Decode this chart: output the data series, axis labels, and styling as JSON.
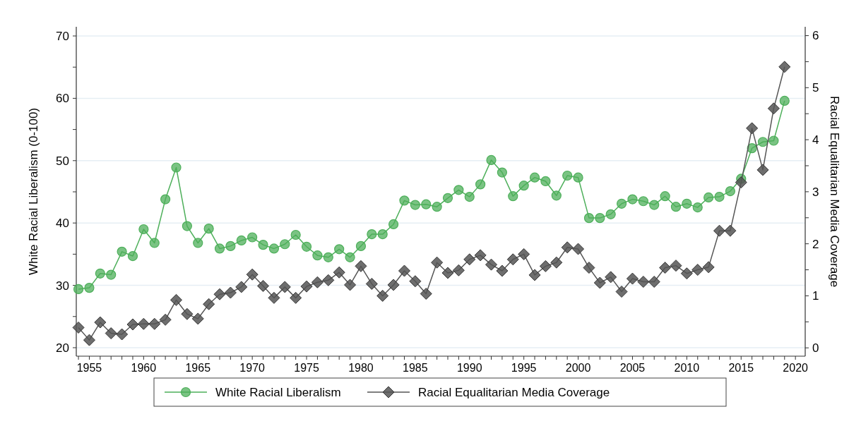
{
  "chart_data": {
    "type": "line",
    "ylabel": "White Racial Liberalism (0-100)",
    "y2label": "Racial Equalitarian Media Coverage",
    "x": [
      1954,
      1955,
      1956,
      1957,
      1958,
      1959,
      1960,
      1961,
      1962,
      1963,
      1964,
      1965,
      1966,
      1967,
      1968,
      1969,
      1970,
      1971,
      1972,
      1973,
      1974,
      1975,
      1976,
      1977,
      1978,
      1979,
      1980,
      1981,
      1982,
      1983,
      1984,
      1985,
      1986,
      1987,
      1988,
      1989,
      1990,
      1991,
      1992,
      1993,
      1994,
      1995,
      1996,
      1997,
      1998,
      1999,
      2000,
      2001,
      2002,
      2003,
      2004,
      2005,
      2006,
      2007,
      2008,
      2009,
      2010,
      2011,
      2012,
      2013,
      2014,
      2015,
      2016,
      2017,
      2018,
      2019
    ],
    "xlim": [
      1953.8,
      2020.9
    ],
    "xticks": [
      {
        "value": 1954,
        "label": null
      },
      1955,
      {
        "value": 1956,
        "label": null
      },
      {
        "value": 1957,
        "label": null
      },
      {
        "value": 1958,
        "label": null
      },
      {
        "value": 1959,
        "label": null
      },
      1960,
      {
        "value": 1961,
        "label": null
      },
      {
        "value": 1962,
        "label": null
      },
      {
        "value": 1963,
        "label": null
      },
      {
        "value": 1964,
        "label": null
      },
      1965,
      {
        "value": 1966,
        "label": null
      },
      {
        "value": 1967,
        "label": null
      },
      {
        "value": 1968,
        "label": null
      },
      {
        "value": 1969,
        "label": null
      },
      1970,
      {
        "value": 1971,
        "label": null
      },
      {
        "value": 1972,
        "label": null
      },
      {
        "value": 1973,
        "label": null
      },
      {
        "value": 1974,
        "label": null
      },
      1975,
      {
        "value": 1976,
        "label": null
      },
      {
        "value": 1977,
        "label": null
      },
      {
        "value": 1978,
        "label": null
      },
      {
        "value": 1979,
        "label": null
      },
      1980,
      {
        "value": 1981,
        "label": null
      },
      {
        "value": 1982,
        "label": null
      },
      {
        "value": 1983,
        "label": null
      },
      {
        "value": 1984,
        "label": null
      },
      1985,
      {
        "value": 1986,
        "label": null
      },
      {
        "value": 1987,
        "label": null
      },
      {
        "value": 1988,
        "label": null
      },
      {
        "value": 1989,
        "label": null
      },
      1990,
      {
        "value": 1991,
        "label": null
      },
      {
        "value": 1992,
        "label": null
      },
      {
        "value": 1993,
        "label": null
      },
      {
        "value": 1994,
        "label": null
      },
      1995,
      {
        "value": 1996,
        "label": null
      },
      {
        "value": 1997,
        "label": null
      },
      {
        "value": 1998,
        "label": null
      },
      {
        "value": 1999,
        "label": null
      },
      2000,
      {
        "value": 2001,
        "label": null
      },
      {
        "value": 2002,
        "label": null
      },
      {
        "value": 2003,
        "label": null
      },
      {
        "value": 2004,
        "label": null
      },
      2005,
      {
        "value": 2006,
        "label": null
      },
      {
        "value": 2007,
        "label": null
      },
      {
        "value": 2008,
        "label": null
      },
      {
        "value": 2009,
        "label": null
      },
      2010,
      {
        "value": 2011,
        "label": null
      },
      {
        "value": 2012,
        "label": null
      },
      {
        "value": 2013,
        "label": null
      },
      {
        "value": 2014,
        "label": null
      },
      2015,
      {
        "value": 2016,
        "label": null
      },
      {
        "value": 2017,
        "label": null
      },
      {
        "value": 2018,
        "label": null
      },
      {
        "value": 2019,
        "label": null
      },
      2020
    ],
    "ylim": [
      18.64,
      71.47
    ],
    "yticks": [
      20,
      {
        "value": 25,
        "label": null
      },
      30,
      {
        "value": 35,
        "label": null
      },
      40,
      {
        "value": 45,
        "label": null
      },
      50,
      {
        "value": 55,
        "label": null
      },
      60,
      {
        "value": 65,
        "label": null
      },
      70
    ],
    "y2lim": [
      -0.16,
      6.17
    ],
    "y2ticks": [
      0,
      {
        "value": 0.5,
        "label": null
      },
      1,
      {
        "value": 1.5,
        "label": null
      },
      2,
      {
        "value": 2.5,
        "label": null
      },
      3,
      {
        "value": 3.5,
        "label": null
      },
      4,
      {
        "value": 4.5,
        "label": null
      },
      5,
      {
        "value": 5.5,
        "label": null
      },
      6
    ],
    "grid": "y",
    "legend": "bottom",
    "series": [
      {
        "name": "White Racial Liberalism",
        "color": "#4daf5a",
        "marker": "circle",
        "values": [
          29.4,
          29.6,
          31.9,
          31.7,
          35.4,
          34.7,
          39.0,
          36.8,
          43.8,
          48.9,
          39.5,
          36.8,
          39.1,
          35.9,
          36.3,
          37.2,
          37.7,
          36.5,
          35.9,
          36.6,
          38.1,
          36.2,
          34.8,
          34.5,
          35.8,
          34.5,
          36.3,
          38.2,
          38.2,
          39.8,
          43.6,
          42.9,
          43.0,
          42.6,
          44.0,
          45.3,
          44.2,
          46.2,
          50.1,
          48.1,
          44.3,
          46.0,
          47.3,
          46.7,
          44.4,
          47.6,
          47.3,
          40.8,
          40.8,
          41.4,
          43.1,
          43.8,
          43.5,
          42.9,
          44.3,
          42.6,
          43.1,
          42.5,
          44.1,
          44.2,
          45.1,
          47.1,
          52.0,
          53.0,
          53.2,
          59.6
        ]
      },
      {
        "name": "Racial Equalitarian Media Coverage",
        "color": "#555555",
        "marker": "diamond",
        "axis": "y2",
        "values": [
          0.39,
          0.15,
          0.49,
          0.28,
          0.26,
          0.45,
          0.46,
          0.46,
          0.54,
          0.92,
          0.65,
          0.56,
          0.84,
          1.03,
          1.06,
          1.17,
          1.41,
          1.19,
          0.96,
          1.17,
          0.96,
          1.18,
          1.26,
          1.3,
          1.45,
          1.21,
          1.57,
          1.23,
          1.0,
          1.21,
          1.48,
          1.28,
          1.04,
          1.64,
          1.44,
          1.49,
          1.7,
          1.78,
          1.6,
          1.48,
          1.7,
          1.8,
          1.4,
          1.57,
          1.64,
          1.93,
          1.9,
          1.54,
          1.25,
          1.36,
          1.08,
          1.33,
          1.27,
          1.27,
          1.54,
          1.58,
          1.43,
          1.5,
          1.55,
          2.25,
          2.25,
          3.18,
          4.22,
          3.42,
          4.6,
          5.4
        ]
      }
    ]
  }
}
